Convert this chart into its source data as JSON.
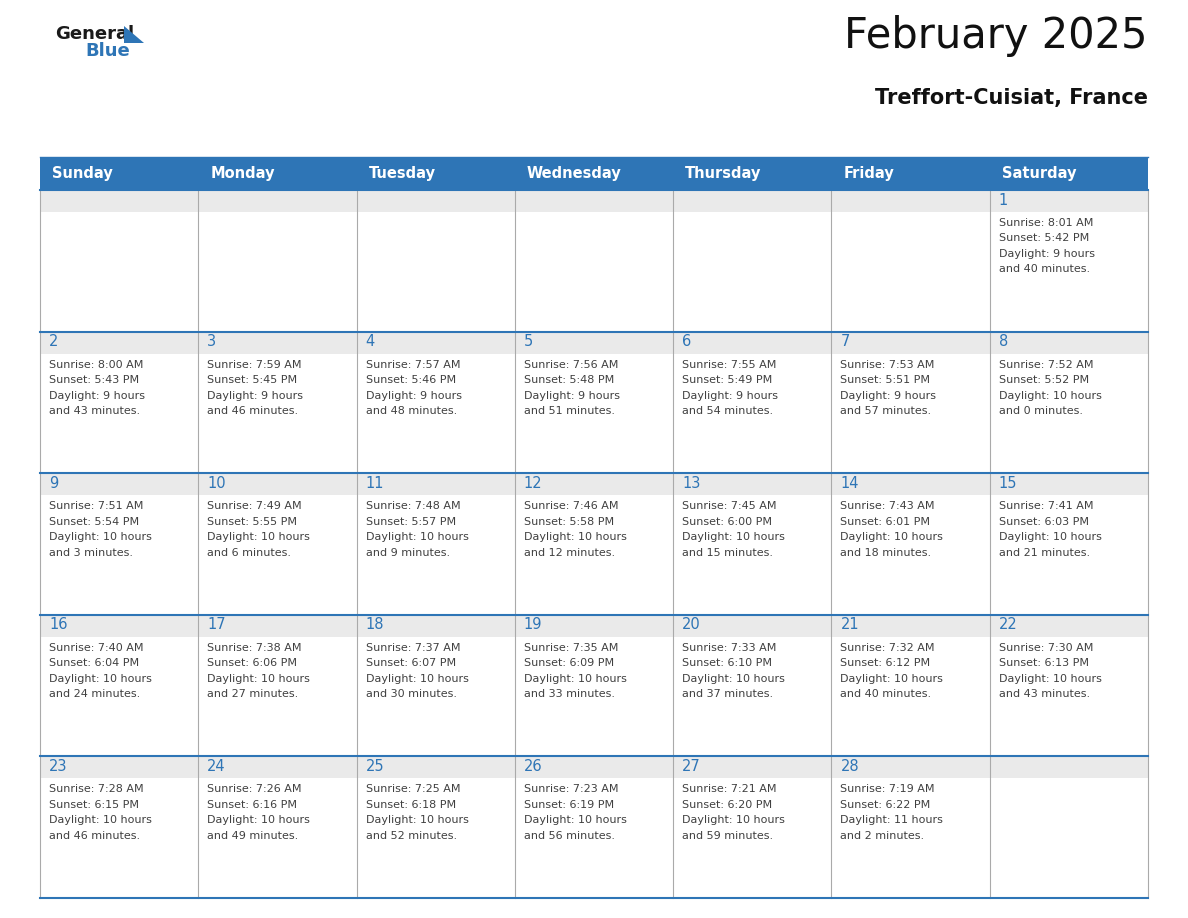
{
  "title": "February 2025",
  "subtitle": "Treffort-Cuisiat, France",
  "header_bg": "#2E75B6",
  "header_text": "#FFFFFF",
  "cell_top_bg": "#EAEAEA",
  "cell_body_bg": "#FFFFFF",
  "day_number_color": "#2E75B6",
  "text_color": "#404040",
  "border_color": "#2E75B6",
  "days_of_week": [
    "Sunday",
    "Monday",
    "Tuesday",
    "Wednesday",
    "Thursday",
    "Friday",
    "Saturday"
  ],
  "logo_general_color": "#1a1a1a",
  "logo_blue_color": "#2E75B6",
  "logo_triangle_color": "#2E75B6",
  "weeks": [
    [
      {
        "day": null,
        "sunrise": null,
        "sunset": null,
        "daylight": null
      },
      {
        "day": null,
        "sunrise": null,
        "sunset": null,
        "daylight": null
      },
      {
        "day": null,
        "sunrise": null,
        "sunset": null,
        "daylight": null
      },
      {
        "day": null,
        "sunrise": null,
        "sunset": null,
        "daylight": null
      },
      {
        "day": null,
        "sunrise": null,
        "sunset": null,
        "daylight": null
      },
      {
        "day": null,
        "sunrise": null,
        "sunset": null,
        "daylight": null
      },
      {
        "day": 1,
        "sunrise": "8:01 AM",
        "sunset": "5:42 PM",
        "daylight": "9 hours and 40 minutes."
      }
    ],
    [
      {
        "day": 2,
        "sunrise": "8:00 AM",
        "sunset": "5:43 PM",
        "daylight": "9 hours and 43 minutes."
      },
      {
        "day": 3,
        "sunrise": "7:59 AM",
        "sunset": "5:45 PM",
        "daylight": "9 hours and 46 minutes."
      },
      {
        "day": 4,
        "sunrise": "7:57 AM",
        "sunset": "5:46 PM",
        "daylight": "9 hours and 48 minutes."
      },
      {
        "day": 5,
        "sunrise": "7:56 AM",
        "sunset": "5:48 PM",
        "daylight": "9 hours and 51 minutes."
      },
      {
        "day": 6,
        "sunrise": "7:55 AM",
        "sunset": "5:49 PM",
        "daylight": "9 hours and 54 minutes."
      },
      {
        "day": 7,
        "sunrise": "7:53 AM",
        "sunset": "5:51 PM",
        "daylight": "9 hours and 57 minutes."
      },
      {
        "day": 8,
        "sunrise": "7:52 AM",
        "sunset": "5:52 PM",
        "daylight": "10 hours and 0 minutes."
      }
    ],
    [
      {
        "day": 9,
        "sunrise": "7:51 AM",
        "sunset": "5:54 PM",
        "daylight": "10 hours and 3 minutes."
      },
      {
        "day": 10,
        "sunrise": "7:49 AM",
        "sunset": "5:55 PM",
        "daylight": "10 hours and 6 minutes."
      },
      {
        "day": 11,
        "sunrise": "7:48 AM",
        "sunset": "5:57 PM",
        "daylight": "10 hours and 9 minutes."
      },
      {
        "day": 12,
        "sunrise": "7:46 AM",
        "sunset": "5:58 PM",
        "daylight": "10 hours and 12 minutes."
      },
      {
        "day": 13,
        "sunrise": "7:45 AM",
        "sunset": "6:00 PM",
        "daylight": "10 hours and 15 minutes."
      },
      {
        "day": 14,
        "sunrise": "7:43 AM",
        "sunset": "6:01 PM",
        "daylight": "10 hours and 18 minutes."
      },
      {
        "day": 15,
        "sunrise": "7:41 AM",
        "sunset": "6:03 PM",
        "daylight": "10 hours and 21 minutes."
      }
    ],
    [
      {
        "day": 16,
        "sunrise": "7:40 AM",
        "sunset": "6:04 PM",
        "daylight": "10 hours and 24 minutes."
      },
      {
        "day": 17,
        "sunrise": "7:38 AM",
        "sunset": "6:06 PM",
        "daylight": "10 hours and 27 minutes."
      },
      {
        "day": 18,
        "sunrise": "7:37 AM",
        "sunset": "6:07 PM",
        "daylight": "10 hours and 30 minutes."
      },
      {
        "day": 19,
        "sunrise": "7:35 AM",
        "sunset": "6:09 PM",
        "daylight": "10 hours and 33 minutes."
      },
      {
        "day": 20,
        "sunrise": "7:33 AM",
        "sunset": "6:10 PM",
        "daylight": "10 hours and 37 minutes."
      },
      {
        "day": 21,
        "sunrise": "7:32 AM",
        "sunset": "6:12 PM",
        "daylight": "10 hours and 40 minutes."
      },
      {
        "day": 22,
        "sunrise": "7:30 AM",
        "sunset": "6:13 PM",
        "daylight": "10 hours and 43 minutes."
      }
    ],
    [
      {
        "day": 23,
        "sunrise": "7:28 AM",
        "sunset": "6:15 PM",
        "daylight": "10 hours and 46 minutes."
      },
      {
        "day": 24,
        "sunrise": "7:26 AM",
        "sunset": "6:16 PM",
        "daylight": "10 hours and 49 minutes."
      },
      {
        "day": 25,
        "sunrise": "7:25 AM",
        "sunset": "6:18 PM",
        "daylight": "10 hours and 52 minutes."
      },
      {
        "day": 26,
        "sunrise": "7:23 AM",
        "sunset": "6:19 PM",
        "daylight": "10 hours and 56 minutes."
      },
      {
        "day": 27,
        "sunrise": "7:21 AM",
        "sunset": "6:20 PM",
        "daylight": "10 hours and 59 minutes."
      },
      {
        "day": 28,
        "sunrise": "7:19 AM",
        "sunset": "6:22 PM",
        "daylight": "11 hours and 2 minutes."
      },
      {
        "day": null,
        "sunrise": null,
        "sunset": null,
        "daylight": null
      }
    ]
  ]
}
